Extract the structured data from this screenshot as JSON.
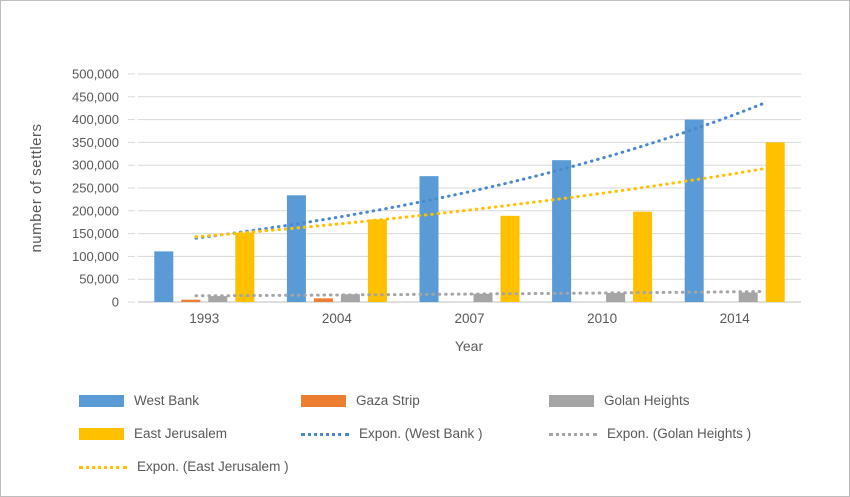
{
  "chart_data": {
    "type": "bar",
    "title": "",
    "xlabel": "Year",
    "ylabel": "number of settlers",
    "categories": [
      "1993",
      "2004",
      "2007",
      "2010",
      "2014"
    ],
    "series": [
      {
        "name": "West Bank",
        "color": "#5B9BD5",
        "values": [
          111000,
          234000,
          276000,
          311000,
          400000
        ]
      },
      {
        "name": "Gaza Strip",
        "color": "#ED7D31",
        "values": [
          5000,
          8000,
          0,
          0,
          0
        ]
      },
      {
        "name": "Golan Heights",
        "color": "#A5A5A5",
        "values": [
          13000,
          17000,
          18000,
          20000,
          21000
        ]
      },
      {
        "name": "East Jerusalem",
        "color": "#FFC000",
        "values": [
          152000,
          181000,
          189000,
          198000,
          350000
        ]
      }
    ],
    "trendlines": [
      {
        "name": "Expon. (West Bank )",
        "series": "West Bank",
        "color": "#4A88CE",
        "start_value": 140000,
        "end_value": 435000
      },
      {
        "name": "Expon. (Golan Heights )",
        "series": "Golan Heights",
        "color": "#A5A5A5",
        "start_value": 13500,
        "end_value": 23000
      },
      {
        "name": "Expon. (East Jerusalem )",
        "series": "East Jerusalem",
        "color": "#FFC000",
        "start_value": 143000,
        "end_value": 292000
      }
    ],
    "ylim": [
      0,
      500000
    ],
    "ytick_step": 50000,
    "ytick_labels": [
      "0",
      "50,000",
      "100,000",
      "150,000",
      "200,000",
      "250,000",
      "300,000",
      "350,000",
      "400,000",
      "450,000",
      "500,000"
    ],
    "grid": true,
    "legend_position": "bottom",
    "axis_text_color": "#595959",
    "gridline_color": "#D9D9D9",
    "axisline_color": "#BFBFBF"
  },
  "legend": {
    "items": [
      {
        "label": "West Bank",
        "swatch": "bar",
        "color": "#5B9BD5"
      },
      {
        "label": "Gaza Strip",
        "swatch": "bar",
        "color": "#ED7D31"
      },
      {
        "label": "Golan Heights",
        "swatch": "bar",
        "color": "#A5A5A5"
      },
      {
        "label": "East Jerusalem",
        "swatch": "bar",
        "color": "#FFC000"
      },
      {
        "label": "Expon. (West Bank )",
        "swatch": "dotted",
        "color": "#4A88CE"
      },
      {
        "label": "Expon. (Golan Heights )",
        "swatch": "dotted",
        "color": "#A5A5A5"
      },
      {
        "label": "Expon. (East Jerusalem )",
        "swatch": "dotted",
        "color": "#FFC000"
      }
    ]
  }
}
